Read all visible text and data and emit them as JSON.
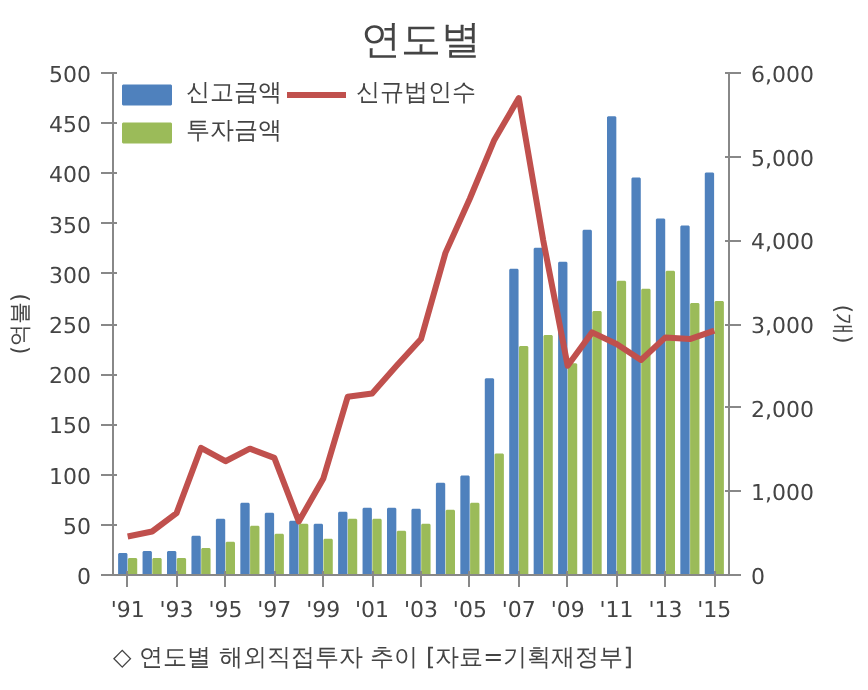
{
  "chart_data": {
    "type": "bar",
    "title": "연도별",
    "ylabel": "(억불)",
    "y2label": "(개)",
    "annotations": [
      "◇ 연도별 해외직접투자 추이 [자료=기획재정부]"
    ],
    "categories": [
      "'91",
      null,
      "'93",
      null,
      "'95",
      null,
      "'97",
      null,
      "'99",
      null,
      "'01",
      null,
      "'03",
      null,
      "'05",
      null,
      "'07",
      null,
      "'09",
      null,
      "'11",
      null,
      "'13",
      null,
      "'15"
    ],
    "series": [
      {
        "name": "신고금액",
        "color": "#4f81bd",
        "values": [
          21,
          23,
          23,
          38,
          55,
          71,
          61,
          53,
          50,
          62,
          66,
          66,
          65,
          91,
          98,
          195,
          304,
          325,
          311,
          343,
          456,
          395,
          354,
          347,
          400
        ]
      },
      {
        "name": "투자금액",
        "color": "#9bbb59",
        "values": [
          16,
          16,
          16,
          26,
          32,
          48,
          40,
          50,
          35,
          55,
          55,
          43,
          50,
          64,
          71,
          120,
          227,
          238,
          210,
          262,
          292,
          284,
          302,
          270,
          272
        ]
      },
      {
        "name": "신규법인수",
        "type": "line",
        "axis": "y2",
        "color": "#c0504d",
        "values": [
          460,
          520,
          740,
          1520,
          1360,
          1510,
          1400,
          640,
          1150,
          2130,
          2170,
          2500,
          2820,
          3850,
          4500,
          5200,
          5700,
          4000,
          2500,
          2900,
          2760,
          2570,
          2840,
          2820,
          2920
        ]
      }
    ],
    "ylim": [
      0,
      500
    ],
    "yticks": [
      0,
      50,
      100,
      150,
      200,
      250,
      300,
      350,
      400,
      450,
      500
    ],
    "y2lim": [
      0,
      6000
    ],
    "y2ticks": [
      0,
      {
        "value": 1000,
        "label": "1,000"
      },
      {
        "value": 2000,
        "label": "2,000"
      },
      {
        "value": 3000,
        "label": "3,000"
      },
      {
        "value": 4000,
        "label": "4,000"
      },
      {
        "value": 5000,
        "label": "5,000"
      },
      {
        "value": 6000,
        "label": "6,000"
      }
    ],
    "grid": false,
    "legend": "top"
  }
}
